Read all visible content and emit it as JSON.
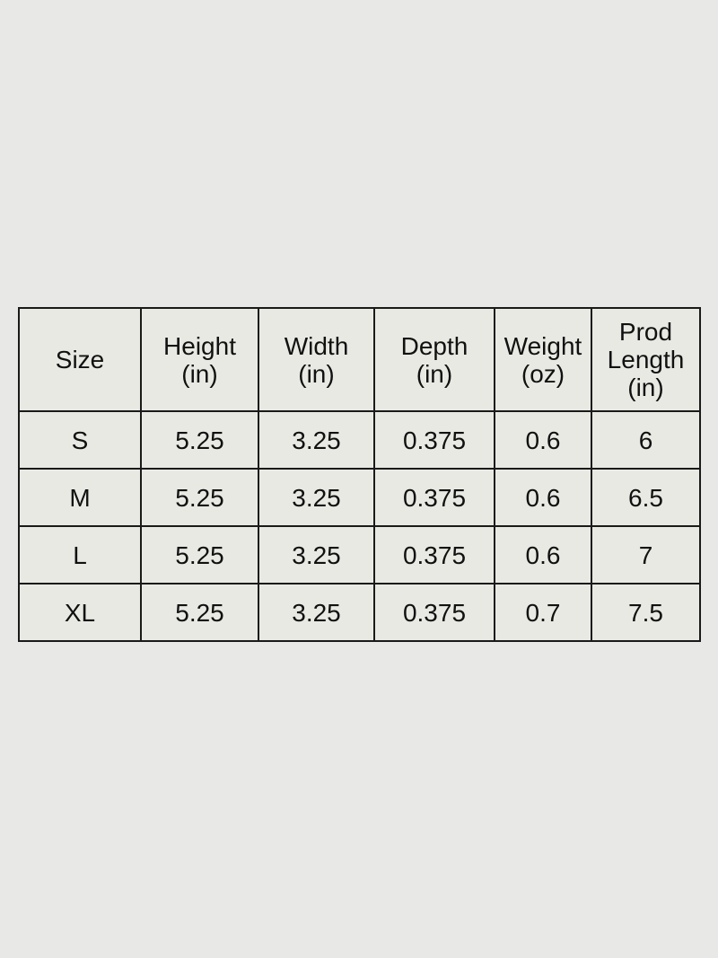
{
  "table": {
    "headers": [
      [
        "Size"
      ],
      [
        "Height",
        "(in)"
      ],
      [
        "Width",
        "(in)"
      ],
      [
        "Depth",
        "(in)"
      ],
      [
        "Weight",
        "(oz)"
      ],
      [
        "Prod",
        "Length",
        "(in)"
      ]
    ],
    "rows": [
      [
        "S",
        "5.25",
        "3.25",
        "0.375",
        "0.6",
        "6"
      ],
      [
        "M",
        "5.25",
        "3.25",
        "0.375",
        "0.6",
        "6.5"
      ],
      [
        "L",
        "5.25",
        "3.25",
        "0.375",
        "0.6",
        "7"
      ],
      [
        "XL",
        "5.25",
        "3.25",
        "0.375",
        "0.7",
        "7.5"
      ]
    ]
  }
}
